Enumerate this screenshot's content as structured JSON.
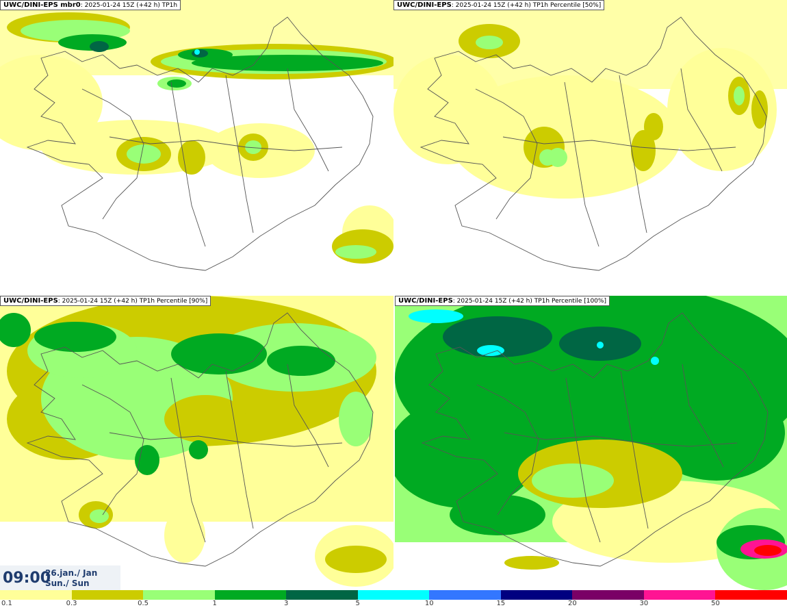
{
  "panels": [
    {
      "id": "mbr0",
      "model": "UWC/DINI-EPS mbr0",
      "subtitle": ": 2025-01-24 15Z (+42 h) TP1h"
    },
    {
      "id": "p50",
      "model": "UWC/DINI-EPS",
      "subtitle": ": 2025-01-24 15Z (+42 h) TP1h Percentile [50%]"
    },
    {
      "id": "p90",
      "model": "UWC/DINI-EPS",
      "subtitle": ": 2025-01-24 15Z (+42 h) TP1h Percentile [90%]"
    },
    {
      "id": "p100",
      "model": "UWC/DINI-EPS",
      "subtitle": ": 2025-01-24 15Z (+42 h) TP1h Percentile [100%]"
    }
  ],
  "valid_time": {
    "hour": "09:00",
    "date_line1": "26.jan./ Jan",
    "date_line2": "Sun./ Sun"
  },
  "colorbar": {
    "colors": [
      "#ffff99",
      "#cccc00",
      "#99ff77",
      "#00aa22",
      "#006644",
      "#00ffff",
      "#3377ff",
      "#000080",
      "#7a0066",
      "#ff1493",
      "#ff0000"
    ],
    "labels": [
      "0.1",
      "0.3",
      "0.5",
      "1",
      "3",
      "5",
      "10",
      "15",
      "20",
      "30",
      "50"
    ]
  },
  "palette": {
    "light_yellow": "#ffff99",
    "olive": "#cccc00",
    "light_green": "#99ff77",
    "green": "#00aa22",
    "dark_green": "#006644",
    "cyan": "#00ffff",
    "red": "#ff0000",
    "magenta": "#ff1493",
    "coast": "#555555"
  }
}
